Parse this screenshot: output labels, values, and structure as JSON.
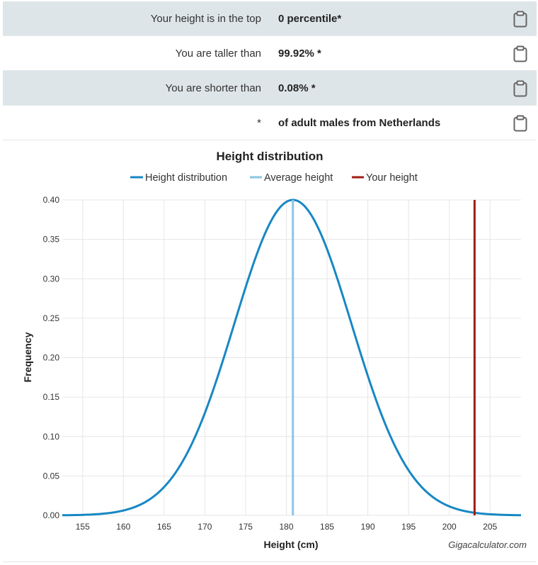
{
  "results": [
    {
      "label": "Your height is in the top",
      "value": "0 percentile*"
    },
    {
      "label": "You are taller than",
      "value": "99.92% *"
    },
    {
      "label": "You are shorter than",
      "value": "0.08% *"
    },
    {
      "label": "*",
      "value": "of adult males from Netherlands"
    }
  ],
  "icons": {
    "copy": "clipboard-icon"
  },
  "chart_data": {
    "type": "line",
    "title": "Height distribution",
    "xlabel": "Height (cm)",
    "ylabel": "Frequency",
    "xlim": [
      152.5,
      208.8
    ],
    "ylim": [
      0,
      0.4
    ],
    "xticks": [
      155,
      160,
      165,
      170,
      175,
      180,
      185,
      190,
      195,
      200,
      205
    ],
    "yticks": [
      "0.00",
      "0.05",
      "0.10",
      "0.15",
      "0.20",
      "0.25",
      "0.30",
      "0.35",
      "0.40"
    ],
    "distribution": {
      "mean": 180.8,
      "sd": 7.2
    },
    "series": [
      {
        "name": "Height distribution",
        "color": "#1787c4",
        "kind": "curve"
      },
      {
        "name": "Average height",
        "color": "#8ac6e4",
        "kind": "vline",
        "x": 180.8
      },
      {
        "name": "Your height",
        "color": "#a11d12",
        "kind": "vline",
        "x": 203.1
      }
    ],
    "watermark": "Gigacalculator.com",
    "grid": true,
    "legend": "top"
  }
}
